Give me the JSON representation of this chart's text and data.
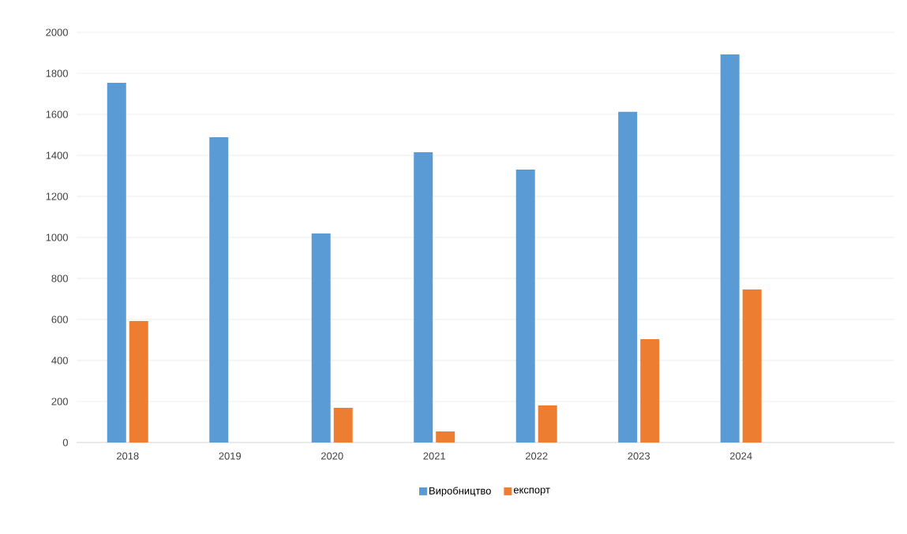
{
  "chart_data": {
    "type": "bar",
    "categories": [
      "2018",
      "2019",
      "2020",
      "2021",
      "2022",
      "2023",
      "2024",
      null
    ],
    "series": [
      {
        "name": "Виробництво",
        "color": "#5b9bd5",
        "values": [
          1754,
          1488,
          1019,
          1415,
          1331,
          1612,
          1892,
          null
        ]
      },
      {
        "name": "експорт",
        "color": "#ed7d31",
        "values": [
          592,
          null,
          169,
          54,
          181,
          504,
          746,
          null
        ]
      }
    ],
    "ylim": [
      0,
      2000
    ],
    "yticks": [
      0,
      200,
      400,
      600,
      800,
      1000,
      1200,
      1400,
      1600,
      1800,
      2000
    ],
    "grid": "y",
    "legend": "bottom"
  }
}
